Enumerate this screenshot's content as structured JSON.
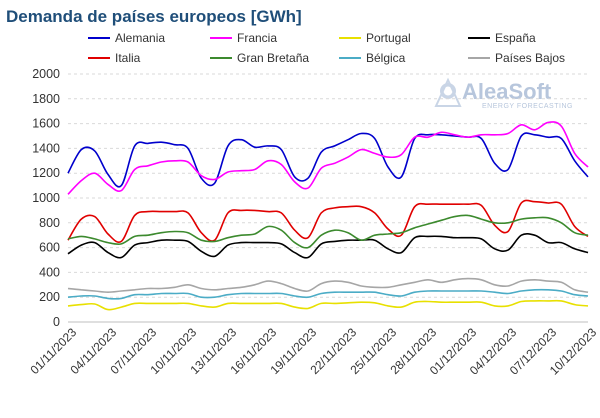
{
  "chart_data": {
    "type": "line",
    "title": "Demanda de países europeos [GWh]",
    "xlabel": "",
    "ylabel": "",
    "ylim": [
      0,
      2000
    ],
    "yticks": [
      0,
      200,
      400,
      600,
      800,
      1000,
      1200,
      1400,
      1600,
      1800,
      2000
    ],
    "grid": true,
    "legend": "top",
    "x": [
      "01/11/2023",
      "02/11/2023",
      "03/11/2023",
      "04/11/2023",
      "05/11/2023",
      "06/11/2023",
      "07/11/2023",
      "08/11/2023",
      "09/11/2023",
      "10/11/2023",
      "11/11/2023",
      "12/11/2023",
      "13/11/2023",
      "14/11/2023",
      "15/11/2023",
      "16/11/2023",
      "17/11/2023",
      "18/11/2023",
      "19/11/2023",
      "20/11/2023",
      "21/11/2023",
      "22/11/2023",
      "23/11/2023",
      "24/11/2023",
      "25/11/2023",
      "26/11/2023",
      "27/11/2023",
      "28/11/2023",
      "29/11/2023",
      "30/11/2023",
      "01/12/2023",
      "02/12/2023",
      "03/12/2023",
      "04/12/2023",
      "05/12/2023",
      "06/12/2023",
      "07/12/2023",
      "08/12/2023",
      "09/12/2023",
      "10/12/2023"
    ],
    "x_tick_labels": [
      "01/11/2023",
      "04/11/2023",
      "07/11/2023",
      "10/11/2023",
      "13/11/2023",
      "16/11/2023",
      "19/11/2023",
      "22/11/2023",
      "25/11/2023",
      "28/11/2023",
      "01/12/2023",
      "04/12/2023",
      "07/12/2023",
      "10/12/2023"
    ],
    "series": [
      {
        "name": "Alemania",
        "color": "#0000cc",
        "values": [
          1200,
          1390,
          1380,
          1190,
          1100,
          1420,
          1440,
          1450,
          1430,
          1400,
          1160,
          1120,
          1420,
          1470,
          1410,
          1420,
          1390,
          1170,
          1160,
          1370,
          1420,
          1470,
          1520,
          1480,
          1250,
          1170,
          1480,
          1510,
          1510,
          1500,
          1490,
          1480,
          1280,
          1230,
          1500,
          1510,
          1490,
          1480,
          1300,
          1170
        ]
      },
      {
        "name": "Francia",
        "color": "#ff00ff",
        "values": [
          1030,
          1140,
          1200,
          1110,
          1060,
          1230,
          1260,
          1290,
          1300,
          1290,
          1180,
          1150,
          1210,
          1220,
          1230,
          1300,
          1270,
          1130,
          1080,
          1240,
          1280,
          1330,
          1390,
          1360,
          1330,
          1350,
          1490,
          1490,
          1530,
          1510,
          1490,
          1510,
          1510,
          1520,
          1590,
          1550,
          1610,
          1580,
          1360,
          1250
        ]
      },
      {
        "name": "Portugal",
        "color": "#e8e000",
        "values": [
          130,
          140,
          145,
          100,
          120,
          150,
          150,
          150,
          150,
          150,
          130,
          120,
          150,
          150,
          150,
          150,
          150,
          120,
          110,
          150,
          150,
          155,
          160,
          155,
          130,
          120,
          160,
          165,
          160,
          160,
          160,
          160,
          130,
          130,
          165,
          170,
          170,
          170,
          140,
          130
        ]
      },
      {
        "name": "España",
        "color": "#000000",
        "values": [
          550,
          620,
          640,
          560,
          520,
          620,
          640,
          660,
          660,
          650,
          570,
          530,
          620,
          640,
          640,
          640,
          630,
          560,
          520,
          630,
          650,
          660,
          660,
          660,
          590,
          560,
          680,
          690,
          690,
          680,
          680,
          670,
          590,
          580,
          700,
          700,
          640,
          640,
          590,
          560
        ]
      },
      {
        "name": "Italia",
        "color": "#e00000",
        "values": [
          660,
          830,
          850,
          710,
          650,
          860,
          890,
          890,
          890,
          880,
          720,
          660,
          880,
          900,
          900,
          890,
          880,
          740,
          680,
          880,
          920,
          930,
          930,
          880,
          750,
          700,
          930,
          950,
          950,
          950,
          950,
          940,
          780,
          730,
          960,
          970,
          960,
          950,
          770,
          690
        ]
      },
      {
        "name": "Gran Bretaña",
        "color": "#3c8a2e",
        "values": [
          670,
          690,
          670,
          640,
          630,
          690,
          700,
          720,
          730,
          720,
          660,
          650,
          680,
          700,
          710,
          770,
          740,
          640,
          600,
          700,
          740,
          720,
          660,
          700,
          710,
          720,
          760,
          790,
          820,
          850,
          860,
          830,
          800,
          800,
          830,
          840,
          840,
          800,
          720,
          700
        ]
      },
      {
        "name": "Bélgica",
        "color": "#4bacc6",
        "values": [
          200,
          210,
          210,
          190,
          190,
          220,
          220,
          230,
          230,
          230,
          200,
          200,
          220,
          230,
          230,
          230,
          230,
          210,
          200,
          230,
          240,
          240,
          240,
          240,
          220,
          210,
          240,
          250,
          250,
          250,
          250,
          250,
          240,
          230,
          250,
          260,
          260,
          250,
          220,
          210
        ]
      },
      {
        "name": "Países Bajos",
        "color": "#a6a6a6",
        "values": [
          270,
          260,
          250,
          240,
          250,
          260,
          270,
          270,
          280,
          300,
          270,
          260,
          270,
          280,
          300,
          330,
          310,
          270,
          250,
          310,
          330,
          320,
          290,
          280,
          280,
          300,
          320,
          340,
          320,
          340,
          350,
          340,
          300,
          290,
          330,
          340,
          330,
          320,
          260,
          240
        ]
      }
    ]
  },
  "watermark": {
    "brand": "AleaSoft",
    "subtitle": "ENERGY FORECASTING"
  }
}
